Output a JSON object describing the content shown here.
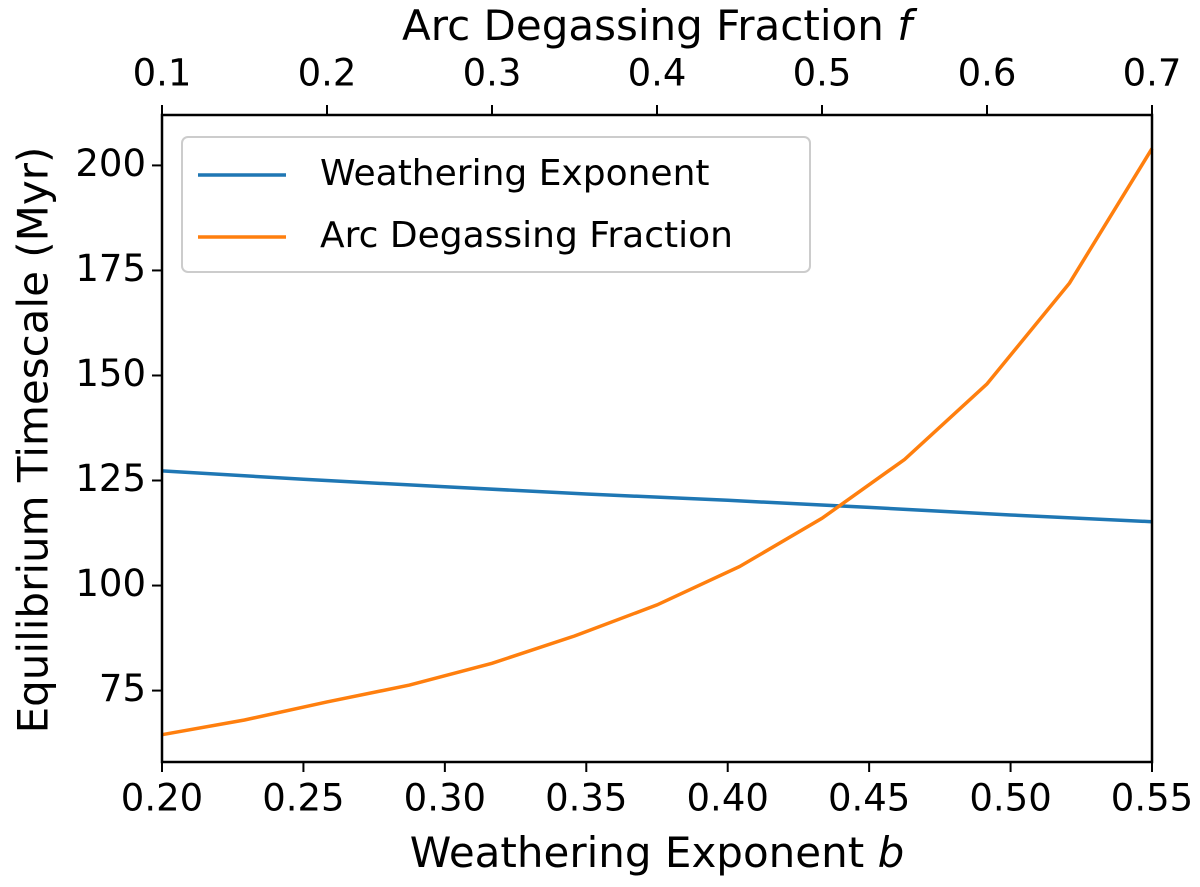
{
  "chart_data": {
    "type": "line",
    "x_label": "Weathering Exponent",
    "x_label_symbol": "b",
    "x2_label": "Arc Degassing Fraction",
    "x2_label_symbol": "f",
    "y_label": "Equilibrium Timescale (Myr)",
    "xlim": [
      0.2,
      0.55
    ],
    "xticks": [
      {
        "value": 0.2,
        "label": "0.20"
      },
      {
        "value": 0.25,
        "label": "0.25"
      },
      {
        "value": 0.3,
        "label": "0.30"
      },
      {
        "value": 0.35,
        "label": "0.35"
      },
      {
        "value": 0.4,
        "label": "0.40"
      },
      {
        "value": 0.45,
        "label": "0.45"
      },
      {
        "value": 0.5,
        "label": "0.50"
      },
      {
        "value": 0.55,
        "label": "0.55"
      }
    ],
    "x2lim": [
      0.1,
      0.7
    ],
    "x2ticks": [
      0.1,
      0.2,
      0.3,
      0.4,
      0.5,
      0.6,
      0.7
    ],
    "ylim": [
      58,
      212
    ],
    "yticks": [
      75,
      100,
      125,
      150,
      175,
      200
    ],
    "legend": "upper left",
    "series": [
      {
        "name": "Weathering Exponent",
        "color": "#1f77b4",
        "axis": "x",
        "x": [
          0.2,
          0.25,
          0.3,
          0.35,
          0.4,
          0.45,
          0.5,
          0.55
        ],
        "values": [
          127.3,
          125.3,
          123.5,
          121.8,
          120.3,
          118.6,
          116.8,
          115.2
        ]
      },
      {
        "name": "Arc Degassing Fraction",
        "color": "#ff7f0e",
        "axis": "x2",
        "x": [
          0.1,
          0.15,
          0.2,
          0.25,
          0.3,
          0.35,
          0.4,
          0.45,
          0.5,
          0.55,
          0.6,
          0.65,
          0.7
        ],
        "values": [
          64.5,
          68.0,
          72.3,
          76.3,
          81.5,
          88.0,
          95.4,
          104.5,
          116.0,
          130.0,
          148.0,
          172.0,
          204.0
        ]
      }
    ]
  }
}
